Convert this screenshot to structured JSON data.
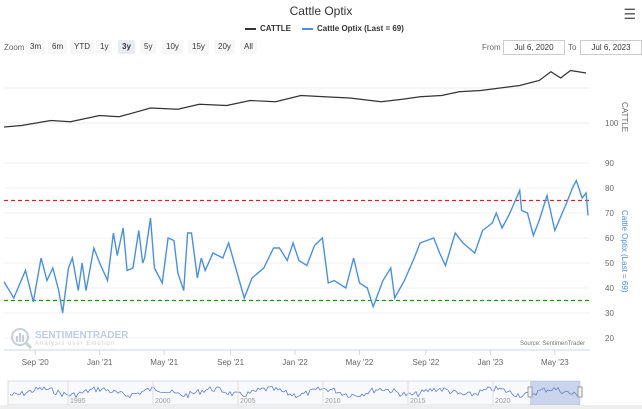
{
  "header": {
    "title": "Cattle Optix",
    "menu_icon": "hamburger-icon"
  },
  "legend": [
    {
      "label": "CATTLE",
      "color": "#333333"
    },
    {
      "label": "Cattle Optix (Last = 69)",
      "color": "#4a90e2"
    }
  ],
  "zoom": {
    "label": "Zoom",
    "buttons": [
      "3m",
      "6m",
      "YTD",
      "1y",
      "3y",
      "5y",
      "10y",
      "15y",
      "20y",
      "All"
    ],
    "selected": "3y"
  },
  "range": {
    "from_label": "From",
    "from": "Jul 6, 2020",
    "to_label": "To",
    "to": "Jul 6, 2023"
  },
  "branding": {
    "logo_name": "SENTIMENTRADER",
    "tagline": "Analysis over Emotion",
    "source": "Source: SentimenTrader"
  },
  "navigator": {
    "years": [
      "1995",
      "2000",
      "2005",
      "2010",
      "2015",
      "2020"
    ]
  },
  "chart_data": {
    "type": "line",
    "title": "Cattle Optix",
    "xlim": [
      2020.51,
      2023.51
    ],
    "x_ticks": [
      {
        "label": "Sep '20",
        "t": 2020.67
      },
      {
        "label": "Jan '21",
        "t": 2021.0
      },
      {
        "label": "May '21",
        "t": 2021.33
      },
      {
        "label": "Sep '21",
        "t": 2021.67
      },
      {
        "label": "Jan '22",
        "t": 2022.0
      },
      {
        "label": "May '22",
        "t": 2022.33
      },
      {
        "label": "Sep '22",
        "t": 2022.67
      },
      {
        "label": "Jan '23",
        "t": 2023.0
      },
      {
        "label": "May '23",
        "t": 2023.33
      }
    ],
    "panes": [
      {
        "name": "CATTLE",
        "ylabel": "CATTLE",
        "color": "#333333",
        "y_ticks": [
          100
        ],
        "ylim": [
          90,
          150
        ],
        "series": [
          [
            2020.51,
            96.8
          ],
          [
            2020.6,
            98
          ],
          [
            2020.75,
            102
          ],
          [
            2020.85,
            101
          ],
          [
            2021.0,
            106
          ],
          [
            2021.1,
            105
          ],
          [
            2021.26,
            112
          ],
          [
            2021.4,
            111
          ],
          [
            2021.51,
            115
          ],
          [
            2021.65,
            114
          ],
          [
            2021.77,
            118
          ],
          [
            2021.9,
            117
          ],
          [
            2022.03,
            122
          ],
          [
            2022.15,
            121
          ],
          [
            2022.28,
            120
          ],
          [
            2022.44,
            117
          ],
          [
            2022.55,
            119
          ],
          [
            2022.64,
            121
          ],
          [
            2022.75,
            122
          ],
          [
            2022.84,
            125
          ],
          [
            2022.95,
            126
          ],
          [
            2023.05,
            128
          ],
          [
            2023.15,
            130
          ],
          [
            2023.25,
            134
          ],
          [
            2023.31,
            141
          ],
          [
            2023.36,
            136
          ],
          [
            2023.41,
            142
          ],
          [
            2023.45,
            141
          ],
          [
            2023.49,
            140
          ]
        ]
      },
      {
        "name": "Cattle Optix (Last = 69)",
        "ylabel": "Cattle Optix (Last = 69)",
        "color": "#4a90e2",
        "y_ticks": [
          20,
          30,
          40,
          50,
          60,
          70,
          80,
          90
        ],
        "ylim": [
          20,
          90
        ],
        "thresholds": [
          {
            "value": 75,
            "color": "#e02020"
          },
          {
            "value": 35,
            "color": "#1a9a1a"
          }
        ],
        "series": [
          [
            2020.51,
            42.5
          ],
          [
            2020.56,
            36
          ],
          [
            2020.62,
            47
          ],
          [
            2020.66,
            34.5
          ],
          [
            2020.7,
            52
          ],
          [
            2020.73,
            43
          ],
          [
            2020.76,
            48
          ],
          [
            2020.79,
            39
          ],
          [
            2020.81,
            30
          ],
          [
            2020.84,
            48
          ],
          [
            2020.86,
            52
          ],
          [
            2020.89,
            39
          ],
          [
            2020.91,
            50
          ],
          [
            2020.93,
            39
          ],
          [
            2020.97,
            56
          ],
          [
            2021.0,
            50
          ],
          [
            2021.04,
            43
          ],
          [
            2021.07,
            62
          ],
          [
            2021.09,
            53
          ],
          [
            2021.12,
            64
          ],
          [
            2021.14,
            47
          ],
          [
            2021.17,
            48
          ],
          [
            2021.2,
            63
          ],
          [
            2021.22,
            50
          ],
          [
            2021.23,
            52
          ],
          [
            2021.26,
            68
          ],
          [
            2021.28,
            48
          ],
          [
            2021.32,
            42
          ],
          [
            2021.35,
            60
          ],
          [
            2021.38,
            59
          ],
          [
            2021.4,
            46
          ],
          [
            2021.43,
            39
          ],
          [
            2021.45,
            62
          ],
          [
            2021.47,
            62
          ],
          [
            2021.5,
            44
          ],
          [
            2021.52,
            52
          ],
          [
            2021.54,
            47
          ],
          [
            2021.58,
            54
          ],
          [
            2021.63,
            52
          ],
          [
            2021.66,
            58
          ],
          [
            2021.7,
            47
          ],
          [
            2021.74,
            36
          ],
          [
            2021.78,
            44
          ],
          [
            2021.84,
            48
          ],
          [
            2021.89,
            56
          ],
          [
            2021.92,
            56
          ],
          [
            2021.96,
            51
          ],
          [
            2021.99,
            58
          ],
          [
            2022.02,
            51
          ],
          [
            2022.06,
            49
          ],
          [
            2022.1,
            57
          ],
          [
            2022.14,
            60
          ],
          [
            2022.17,
            42
          ],
          [
            2022.2,
            43
          ],
          [
            2022.26,
            40
          ],
          [
            2022.3,
            52
          ],
          [
            2022.33,
            42
          ],
          [
            2022.37,
            40
          ],
          [
            2022.4,
            32.5
          ],
          [
            2022.45,
            43
          ],
          [
            2022.49,
            48
          ],
          [
            2022.51,
            36
          ],
          [
            2022.56,
            43
          ],
          [
            2022.61,
            52
          ],
          [
            2022.64,
            58
          ],
          [
            2022.71,
            60
          ],
          [
            2022.74,
            54
          ],
          [
            2022.77,
            49
          ],
          [
            2022.82,
            62
          ],
          [
            2022.86,
            58
          ],
          [
            2022.92,
            54
          ],
          [
            2022.96,
            63
          ],
          [
            2023.01,
            66
          ],
          [
            2023.03,
            70
          ],
          [
            2023.06,
            64
          ],
          [
            2023.1,
            70
          ],
          [
            2023.15,
            79
          ],
          [
            2023.16,
            71
          ],
          [
            2023.19,
            70
          ],
          [
            2023.22,
            61
          ],
          [
            2023.25,
            67
          ],
          [
            2023.29,
            77
          ],
          [
            2023.33,
            63
          ],
          [
            2023.39,
            74
          ],
          [
            2023.42,
            80
          ],
          [
            2023.44,
            83
          ],
          [
            2023.47,
            76
          ],
          [
            2023.49,
            78
          ],
          [
            2023.5,
            69
          ]
        ]
      }
    ]
  }
}
